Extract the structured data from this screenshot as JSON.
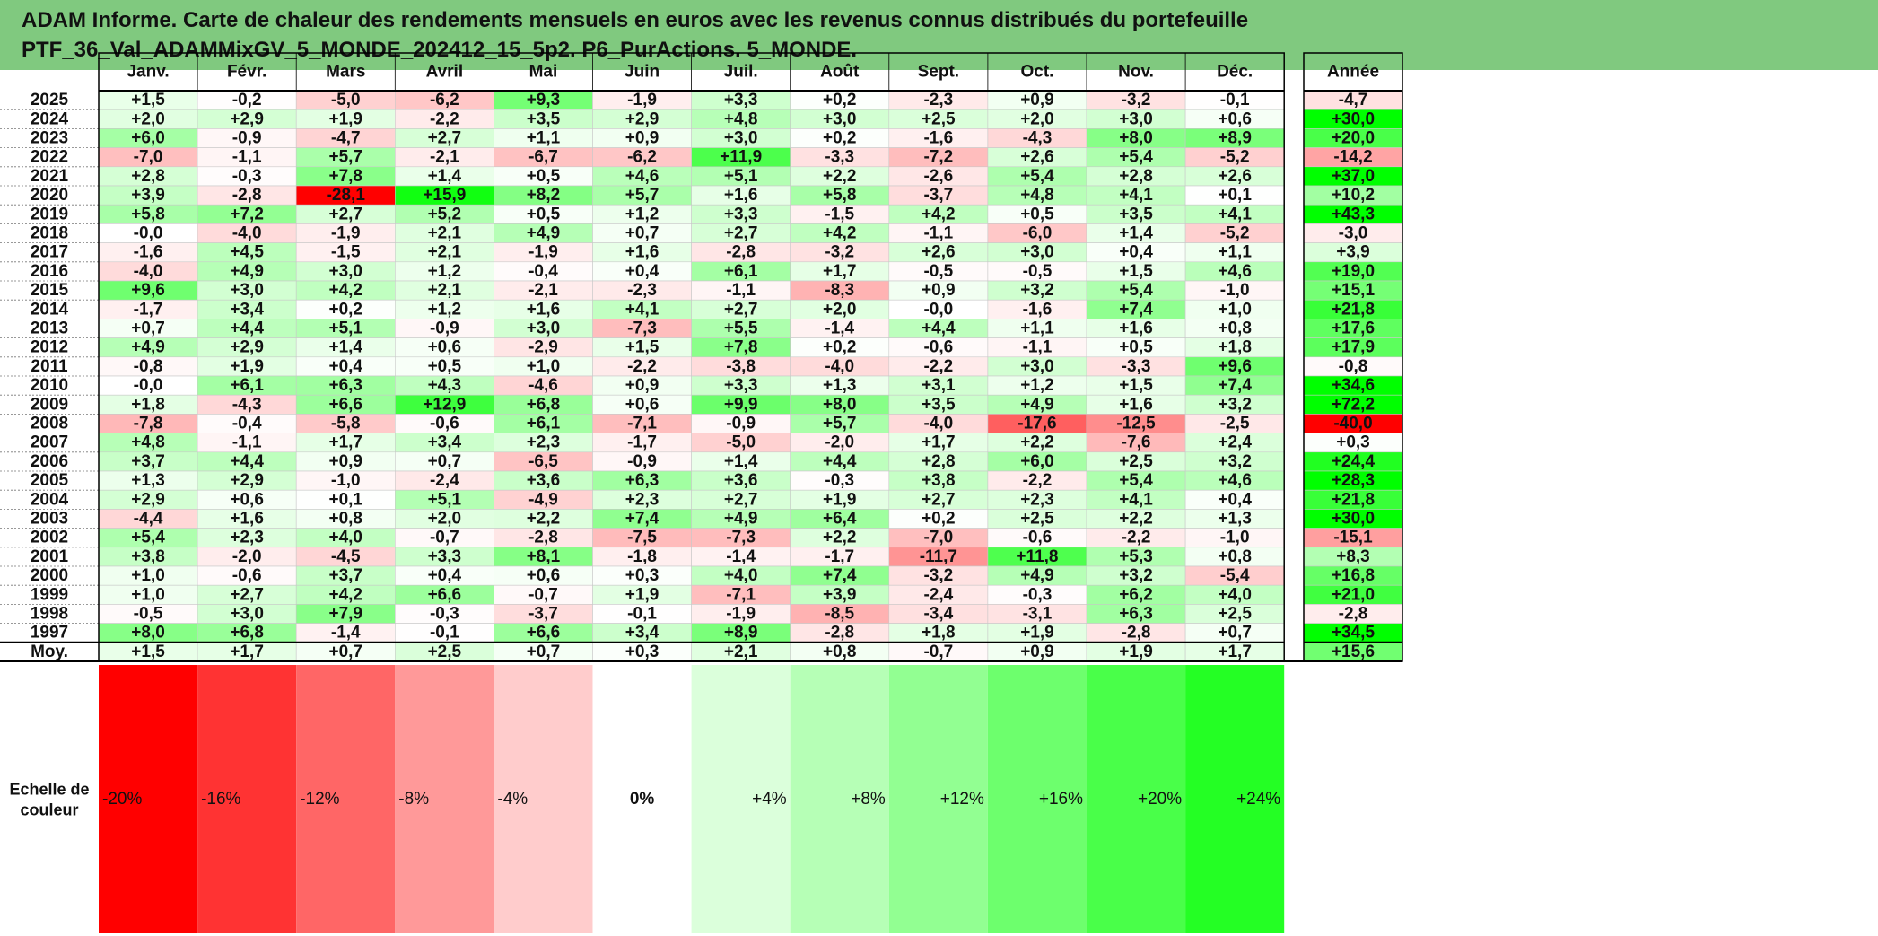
{
  "title": {
    "line1": "ADAM Informe. Carte de chaleur des rendements mensuels en euros avec les revenus connus distribués du portefeuille",
    "line2": "PTF_36_Val_ADAMMixGV_5_MONDE_202412_15_5p2. P6_PurActions. 5_MONDE."
  },
  "colors": {
    "title_bg": "#80c97f",
    "negative_max": "#ff0000",
    "positive_max": "#00ff00",
    "zero": "#ffffff"
  },
  "chart_data": {
    "type": "heatmap",
    "columns": [
      "Janv.",
      "Févr.",
      "Mars",
      "Avril",
      "Mai",
      "Juin",
      "Juil.",
      "Août",
      "Sept.",
      "Oct.",
      "Nov.",
      "Déc."
    ],
    "annual_header": "Année",
    "average_label": "Moy.",
    "rows": [
      {
        "year": "2025",
        "values": [
          "+1,5",
          "-0,2",
          "-5,0",
          "-6,2",
          "+9,3",
          "-1,9",
          "+3,3",
          "+0,2",
          "-2,3",
          "+0,9",
          "-3,2",
          "-0,1"
        ],
        "annual": "-4,7"
      },
      {
        "year": "2024",
        "values": [
          "+2,0",
          "+2,9",
          "+1,9",
          "-2,2",
          "+3,5",
          "+2,9",
          "+4,8",
          "+3,0",
          "+2,5",
          "+2,0",
          "+3,0",
          "+0,6"
        ],
        "annual": "+30,0"
      },
      {
        "year": "2023",
        "values": [
          "+6,0",
          "-0,9",
          "-4,7",
          "+2,7",
          "+1,1",
          "+0,9",
          "+3,0",
          "+0,2",
          "-1,6",
          "-4,3",
          "+8,0",
          "+8,9"
        ],
        "annual": "+20,0"
      },
      {
        "year": "2022",
        "values": [
          "-7,0",
          "-1,1",
          "+5,7",
          "-2,1",
          "-6,7",
          "-6,2",
          "+11,9",
          "-3,3",
          "-7,2",
          "+2,6",
          "+5,4",
          "-5,2"
        ],
        "annual": "-14,2"
      },
      {
        "year": "2021",
        "values": [
          "+2,8",
          "-0,3",
          "+7,8",
          "+1,4",
          "+0,5",
          "+4,6",
          "+5,1",
          "+2,2",
          "-2,6",
          "+5,4",
          "+2,8",
          "+2,6"
        ],
        "annual": "+37,0"
      },
      {
        "year": "2020",
        "values": [
          "+3,9",
          "-2,8",
          "-28,1",
          "+15,9",
          "+8,2",
          "+5,7",
          "+1,6",
          "+5,8",
          "-3,7",
          "+4,8",
          "+4,1",
          "+0,1"
        ],
        "annual": "+10,2"
      },
      {
        "year": "2019",
        "values": [
          "+5,8",
          "+7,2",
          "+2,7",
          "+5,2",
          "+0,5",
          "+1,2",
          "+3,3",
          "-1,5",
          "+4,2",
          "+0,5",
          "+3,5",
          "+4,1"
        ],
        "annual": "+43,3"
      },
      {
        "year": "2018",
        "values": [
          "-0,0",
          "-4,0",
          "-1,9",
          "+2,1",
          "+4,9",
          "+0,7",
          "+2,7",
          "+4,2",
          "-1,1",
          "-6,0",
          "+1,4",
          "-5,2"
        ],
        "annual": "-3,0"
      },
      {
        "year": "2017",
        "values": [
          "-1,6",
          "+4,5",
          "-1,5",
          "+2,1",
          "-1,9",
          "+1,6",
          "-2,8",
          "-3,2",
          "+2,6",
          "+3,0",
          "+0,4",
          "+1,1"
        ],
        "annual": "+3,9"
      },
      {
        "year": "2016",
        "values": [
          "-4,0",
          "+4,9",
          "+3,0",
          "+1,2",
          "-0,4",
          "+0,4",
          "+6,1",
          "+1,7",
          "-0,5",
          "-0,5",
          "+1,5",
          "+4,6"
        ],
        "annual": "+19,0"
      },
      {
        "year": "2015",
        "values": [
          "+9,6",
          "+3,0",
          "+4,2",
          "+2,1",
          "-2,1",
          "-2,3",
          "-1,1",
          "-8,3",
          "+0,9",
          "+3,2",
          "+5,4",
          "-1,0"
        ],
        "annual": "+15,1"
      },
      {
        "year": "2014",
        "values": [
          "-1,7",
          "+3,4",
          "+0,2",
          "+1,2",
          "+1,6",
          "+4,1",
          "+2,7",
          "+2,0",
          "-0,0",
          "-1,6",
          "+7,4",
          "+1,0"
        ],
        "annual": "+21,8"
      },
      {
        "year": "2013",
        "values": [
          "+0,7",
          "+4,4",
          "+5,1",
          "-0,9",
          "+3,0",
          "-7,3",
          "+5,5",
          "-1,4",
          "+4,4",
          "+1,1",
          "+1,6",
          "+0,8"
        ],
        "annual": "+17,6"
      },
      {
        "year": "2012",
        "values": [
          "+4,9",
          "+2,9",
          "+1,4",
          "+0,6",
          "-2,9",
          "+1,5",
          "+7,8",
          "+0,2",
          "-0,6",
          "-1,1",
          "+0,5",
          "+1,8"
        ],
        "annual": "+17,9"
      },
      {
        "year": "2011",
        "values": [
          "-0,8",
          "+1,9",
          "+0,4",
          "+0,5",
          "+1,0",
          "-2,2",
          "-3,8",
          "-4,0",
          "-2,2",
          "+3,0",
          "-3,3",
          "+9,6"
        ],
        "annual": "-0,8"
      },
      {
        "year": "2010",
        "values": [
          "-0,0",
          "+6,1",
          "+6,3",
          "+4,3",
          "-4,6",
          "+0,9",
          "+3,3",
          "+1,3",
          "+3,1",
          "+1,2",
          "+1,5",
          "+7,4"
        ],
        "annual": "+34,6"
      },
      {
        "year": "2009",
        "values": [
          "+1,8",
          "-4,3",
          "+6,6",
          "+12,9",
          "+6,8",
          "+0,6",
          "+9,9",
          "+8,0",
          "+3,5",
          "+4,9",
          "+1,6",
          "+3,2"
        ],
        "annual": "+72,2"
      },
      {
        "year": "2008",
        "values": [
          "-7,8",
          "-0,4",
          "-5,8",
          "-0,6",
          "+6,1",
          "-7,1",
          "-0,9",
          "+5,7",
          "-4,0",
          "-17,6",
          "-12,5",
          "-2,5"
        ],
        "annual": "-40,0"
      },
      {
        "year": "2007",
        "values": [
          "+4,8",
          "-1,1",
          "+1,7",
          "+3,4",
          "+2,3",
          "-1,7",
          "-5,0",
          "-2,0",
          "+1,7",
          "+2,2",
          "-7,6",
          "+2,4"
        ],
        "annual": "+0,3"
      },
      {
        "year": "2006",
        "values": [
          "+3,7",
          "+4,4",
          "+0,9",
          "+0,7",
          "-6,5",
          "-0,9",
          "+1,4",
          "+4,4",
          "+2,8",
          "+6,0",
          "+2,5",
          "+3,2"
        ],
        "annual": "+24,4"
      },
      {
        "year": "2005",
        "values": [
          "+1,3",
          "+2,9",
          "-1,0",
          "-2,4",
          "+3,6",
          "+6,3",
          "+3,6",
          "-0,3",
          "+3,8",
          "-2,2",
          "+5,4",
          "+4,6"
        ],
        "annual": "+28,3"
      },
      {
        "year": "2004",
        "values": [
          "+2,9",
          "+0,6",
          "+0,1",
          "+5,1",
          "-4,9",
          "+2,3",
          "+2,7",
          "+1,9",
          "+2,7",
          "+2,3",
          "+4,1",
          "+0,4"
        ],
        "annual": "+21,8"
      },
      {
        "year": "2003",
        "values": [
          "-4,4",
          "+1,6",
          "+0,8",
          "+2,0",
          "+2,2",
          "+7,4",
          "+4,9",
          "+6,4",
          "+0,2",
          "+2,5",
          "+2,2",
          "+1,3"
        ],
        "annual": "+30,0"
      },
      {
        "year": "2002",
        "values": [
          "+5,4",
          "+2,3",
          "+4,0",
          "-0,7",
          "-2,8",
          "-7,5",
          "-7,3",
          "+2,2",
          "-7,0",
          "-0,6",
          "-2,2",
          "-1,0"
        ],
        "annual": "-15,1"
      },
      {
        "year": "2001",
        "values": [
          "+3,8",
          "-2,0",
          "-4,5",
          "+3,3",
          "+8,1",
          "-1,8",
          "-1,4",
          "-1,7",
          "-11,7",
          "+11,8",
          "+5,3",
          "+0,8"
        ],
        "annual": "+8,3"
      },
      {
        "year": "2000",
        "values": [
          "+1,0",
          "-0,6",
          "+3,7",
          "+0,4",
          "+0,6",
          "+0,3",
          "+4,0",
          "+7,4",
          "-3,2",
          "+4,9",
          "+3,2",
          "-5,4"
        ],
        "annual": "+16,8"
      },
      {
        "year": "1999",
        "values": [
          "+1,0",
          "+2,7",
          "+4,2",
          "+6,6",
          "-0,7",
          "+1,9",
          "-7,1",
          "+3,9",
          "-2,4",
          "-0,3",
          "+6,2",
          "+4,0"
        ],
        "annual": "+21,0"
      },
      {
        "year": "1998",
        "values": [
          "-0,5",
          "+3,0",
          "+7,9",
          "-0,3",
          "-3,7",
          "-0,1",
          "-1,9",
          "-8,5",
          "-3,4",
          "-3,1",
          "+6,3",
          "+2,5"
        ],
        "annual": "-2,8"
      },
      {
        "year": "1997",
        "values": [
          "+8,0",
          "+6,8",
          "-1,4",
          "-0,1",
          "+6,6",
          "+3,4",
          "+8,9",
          "-2,8",
          "+1,8",
          "+1,9",
          "-2,8",
          "+0,7"
        ],
        "annual": "+34,5"
      }
    ],
    "average": {
      "values": [
        "+1,5",
        "+1,7",
        "+0,7",
        "+2,5",
        "+0,7",
        "+0,3",
        "+2,1",
        "+0,8",
        "-0,7",
        "+0,9",
        "+1,9",
        "+1,7"
      ],
      "annual": "+15,6"
    },
    "scale_label": "Echelle de couleur",
    "scale": [
      {
        "label": "-20%",
        "value": -20
      },
      {
        "label": "-16%",
        "value": -16
      },
      {
        "label": "-12%",
        "value": -12
      },
      {
        "label": "-8%",
        "value": -8
      },
      {
        "label": "-4%",
        "value": -4
      },
      {
        "label": "0%",
        "value": 0
      },
      {
        "label": "+4%",
        "value": 4
      },
      {
        "label": "+8%",
        "value": 8
      },
      {
        "label": "+12%",
        "value": 12
      },
      {
        "label": "+16%",
        "value": 16
      },
      {
        "label": "+20%",
        "value": 20
      },
      {
        "label": "+24%",
        "value": 24
      }
    ]
  }
}
